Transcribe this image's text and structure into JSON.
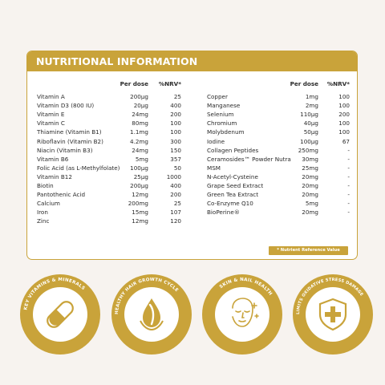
{
  "card": {
    "title": "NUTRITIONAL INFORMATION",
    "headers": {
      "dose": "Per dose",
      "nrv": "%NRV*"
    },
    "left_rows": [
      {
        "name": "Vitamin A",
        "dose": "200µg",
        "nrv": "25"
      },
      {
        "name": "Vitamin D3 (800 IU)",
        "dose": "20µg",
        "nrv": "400"
      },
      {
        "name": "Vitamin E",
        "dose": "24mg",
        "nrv": "200"
      },
      {
        "name": "Vitamin C",
        "dose": "80mg",
        "nrv": "100"
      },
      {
        "name": "Thiamine (Vitamin B1)",
        "dose": "1.1mg",
        "nrv": "100"
      },
      {
        "name": "Riboflavin (Vitamin B2)",
        "dose": "4.2mg",
        "nrv": "300"
      },
      {
        "name": "Niacin (Vitamin B3)",
        "dose": "24mg",
        "nrv": "150"
      },
      {
        "name": "Vitamin B6",
        "dose": "5mg",
        "nrv": "357"
      },
      {
        "name": "Folic Acid (as L-Methylfolate)",
        "dose": "100µg",
        "nrv": "50"
      },
      {
        "name": "Vitamin B12",
        "dose": "25µg",
        "nrv": "1000"
      },
      {
        "name": "Biotin",
        "dose": "200µg",
        "nrv": "400"
      },
      {
        "name": "Pantothenic Acid",
        "dose": "12mg",
        "nrv": "200"
      },
      {
        "name": "Calcium",
        "dose": "200mg",
        "nrv": "25"
      },
      {
        "name": "Iron",
        "dose": "15mg",
        "nrv": "107"
      },
      {
        "name": "Zinc",
        "dose": "12mg",
        "nrv": "120"
      }
    ],
    "right_rows": [
      {
        "name": "Copper",
        "dose": "1mg",
        "nrv": "100"
      },
      {
        "name": "Manganese",
        "dose": "2mg",
        "nrv": "100"
      },
      {
        "name": "Selenium",
        "dose": "110µg",
        "nrv": "200"
      },
      {
        "name": "Chromium",
        "dose": "40µg",
        "nrv": "100"
      },
      {
        "name": "Molybdenum",
        "dose": "50µg",
        "nrv": "100"
      },
      {
        "name": "Iodine",
        "dose": "100µg",
        "nrv": "67"
      },
      {
        "name": "Collagen Peptides",
        "dose": "250mg",
        "nrv": "-"
      },
      {
        "name": "Ceramosides™ Powder Nutra",
        "dose": "30mg",
        "nrv": "-"
      },
      {
        "name": "MSM",
        "dose": "25mg",
        "nrv": "-"
      },
      {
        "name": "N-Acetyl-Cysteine",
        "dose": "20mg",
        "nrv": "-"
      },
      {
        "name": "Grape Seed Extract",
        "dose": "20mg",
        "nrv": "-"
      },
      {
        "name": "Green Tea Extract",
        "dose": "20mg",
        "nrv": "-"
      },
      {
        "name": "Co-Enzyme Q10",
        "dose": "5mg",
        "nrv": "-"
      },
      {
        "name": "BioPerine®",
        "dose": "20mg",
        "nrv": "-"
      }
    ],
    "footnote": "* Nutrient Reference Value"
  },
  "badges": [
    {
      "text": "KEY VITAMINS & MINERALS",
      "icon": "capsule-icon"
    },
    {
      "text": "HEALTHY HAIR GROWTH CYCLE",
      "icon": "hair-drop-icon"
    },
    {
      "text": "SKIN & NAIL HEALTH",
      "icon": "face-icon"
    },
    {
      "text": "LIMITS OXIDATIVE STRESS DAMAGE",
      "icon": "shield-cross-icon"
    }
  ],
  "colors": {
    "gold": "#c9a33a",
    "background": "#f7f3ef",
    "text": "#2b2b2b",
    "white": "#ffffff"
  }
}
